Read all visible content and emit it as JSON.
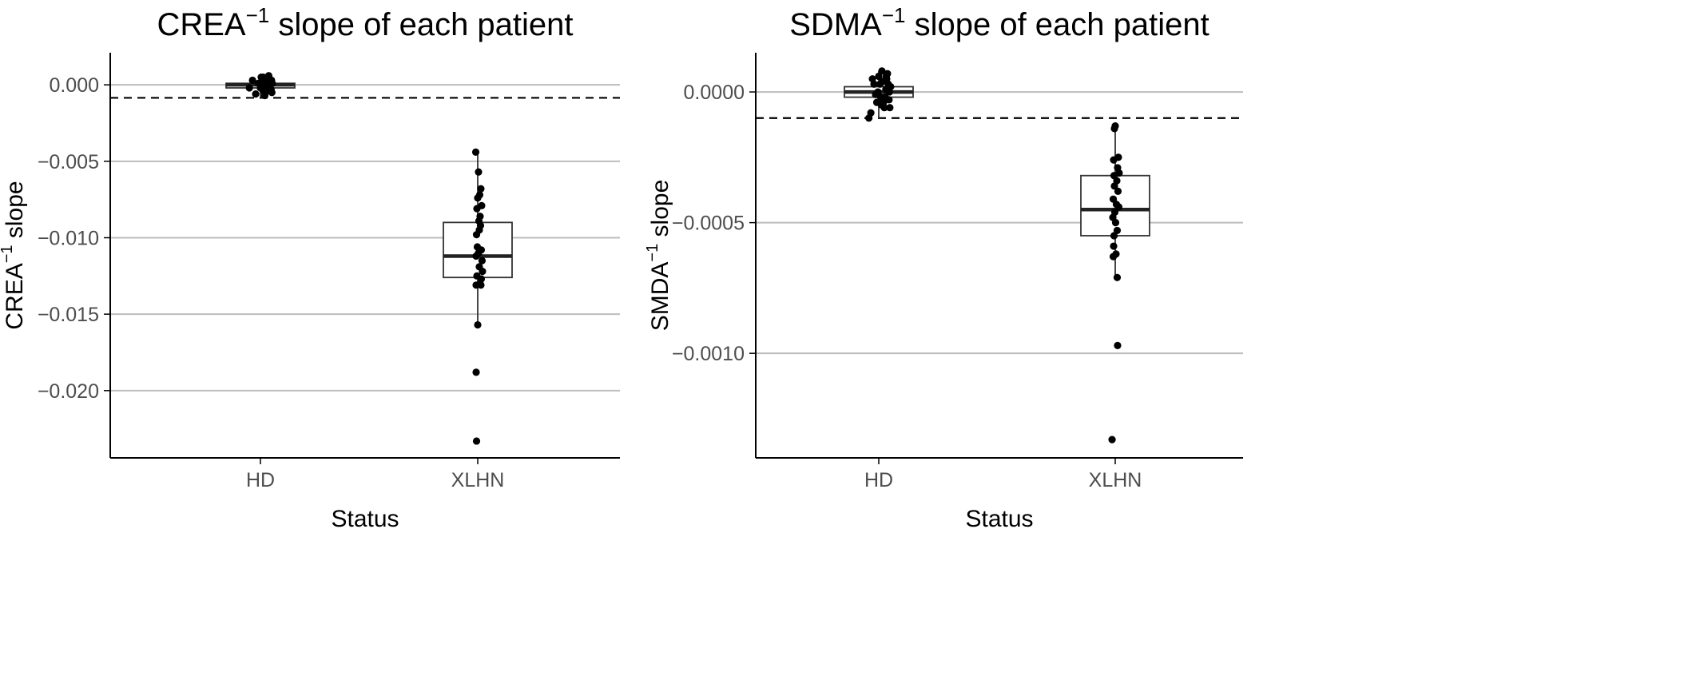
{
  "chart_data": [
    {
      "type": "box",
      "title": "CREA",
      "title_sup": "−1",
      "title_suffix": " slope of each patient",
      "xlabel": "Status",
      "ylabel": "CREA",
      "ylabel_sup": "−1",
      "ylabel_suffix": " slope",
      "categories": [
        "HD",
        "XLHN"
      ],
      "ylim": [
        -0.0244,
        0.0021
      ],
      "yticks": [
        0,
        -0.005,
        -0.01,
        -0.015,
        -0.02
      ],
      "ytick_labels": [
        "0.000",
        "−0.005",
        "−0.010",
        "−0.015",
        "−0.020"
      ],
      "reference_line": -0.00085,
      "grid": "major horizontal",
      "boxes": [
        {
          "category": "HD",
          "q1": -0.0002,
          "median": 0.0,
          "q3": 0.0001,
          "whisker_low": -0.0008,
          "whisker_high": 0.0006
        },
        {
          "category": "XLHN",
          "q1": -0.0126,
          "median": -0.0112,
          "q3": -0.009,
          "whisker_low": -0.0157,
          "whisker_high": -0.0044
        }
      ],
      "points": [
        {
          "category": "HD",
          "x": -0.28,
          "y": -0.0002
        },
        {
          "category": "HD",
          "x": -0.2,
          "y": 0.0003
        },
        {
          "category": "HD",
          "x": -0.12,
          "y": -0.0006
        },
        {
          "category": "HD",
          "x": -0.05,
          "y": 0.0001
        },
        {
          "category": "HD",
          "x": 0.02,
          "y": 0.0005
        },
        {
          "category": "HD",
          "x": 0.08,
          "y": -0.0004
        },
        {
          "category": "HD",
          "x": 0.14,
          "y": 0.0002
        },
        {
          "category": "HD",
          "x": 0.18,
          "y": -0.0001
        },
        {
          "category": "HD",
          "x": 0.23,
          "y": 0.0004
        },
        {
          "category": "HD",
          "x": 0.27,
          "y": -0.0003
        },
        {
          "category": "HD",
          "x": 0.3,
          "y": 0.0001
        },
        {
          "category": "HD",
          "x": 0.21,
          "y": 0.0006
        },
        {
          "category": "HD",
          "x": 0.11,
          "y": -0.0007
        },
        {
          "category": "HD",
          "x": 0.0,
          "y": -0.0002
        },
        {
          "category": "HD",
          "x": 0.05,
          "y": 0.0003
        },
        {
          "category": "HD",
          "x": 0.25,
          "y": 0.0
        },
        {
          "category": "HD",
          "x": 0.16,
          "y": 0.0004
        },
        {
          "category": "HD",
          "x": 0.29,
          "y": -0.0005
        },
        {
          "category": "HD",
          "x": 0.1,
          "y": 0.0001
        },
        {
          "category": "HD",
          "x": 0.19,
          "y": -0.0004
        },
        {
          "category": "HD",
          "x": 0.07,
          "y": 0.0005
        },
        {
          "category": "HD",
          "x": 0.24,
          "y": 0.0002
        },
        {
          "category": "HD",
          "x": 0.28,
          "y": 0.0003
        },
        {
          "category": "HD",
          "x": 0.13,
          "y": -0.0002
        },
        {
          "category": "HD",
          "x": 0.17,
          "y": 0.0
        },
        {
          "category": "XLHN",
          "x": -0.05,
          "y": -0.0044
        },
        {
          "category": "XLHN",
          "x": 0.02,
          "y": -0.0057
        },
        {
          "category": "XLHN",
          "x": 0.08,
          "y": -0.0068
        },
        {
          "category": "XLHN",
          "x": 0.05,
          "y": -0.0072
        },
        {
          "category": "XLHN",
          "x": 0.0,
          "y": -0.0074
        },
        {
          "category": "XLHN",
          "x": 0.1,
          "y": -0.0079
        },
        {
          "category": "XLHN",
          "x": -0.02,
          "y": -0.0081
        },
        {
          "category": "XLHN",
          "x": 0.06,
          "y": -0.0086
        },
        {
          "category": "XLHN",
          "x": 0.03,
          "y": -0.0089
        },
        {
          "category": "XLHN",
          "x": 0.07,
          "y": -0.0092
        },
        {
          "category": "XLHN",
          "x": 0.04,
          "y": -0.0095
        },
        {
          "category": "XLHN",
          "x": -0.03,
          "y": -0.0098
        },
        {
          "category": "XLHN",
          "x": -0.01,
          "y": -0.0106
        },
        {
          "category": "XLHN",
          "x": 0.09,
          "y": -0.0108
        },
        {
          "category": "XLHN",
          "x": 0.02,
          "y": -0.011
        },
        {
          "category": "XLHN",
          "x": -0.04,
          "y": -0.0112
        },
        {
          "category": "XLHN",
          "x": 0.11,
          "y": -0.0115
        },
        {
          "category": "XLHN",
          "x": 0.04,
          "y": -0.0119
        },
        {
          "category": "XLHN",
          "x": 0.12,
          "y": -0.0122
        },
        {
          "category": "XLHN",
          "x": -0.02,
          "y": -0.0125
        },
        {
          "category": "XLHN",
          "x": 0.09,
          "y": -0.0127
        },
        {
          "category": "XLHN",
          "x": 0.06,
          "y": -0.013
        },
        {
          "category": "XLHN",
          "x": -0.04,
          "y": -0.0131
        },
        {
          "category": "XLHN",
          "x": 0.08,
          "y": -0.0131
        },
        {
          "category": "XLHN",
          "x": 0.0,
          "y": -0.0157
        },
        {
          "category": "XLHN",
          "x": -0.04,
          "y": -0.0188
        },
        {
          "category": "XLHN",
          "x": -0.03,
          "y": -0.0233
        }
      ]
    },
    {
      "type": "box",
      "title": "SDMA",
      "title_sup": "−1",
      "title_suffix": " slope of each patient",
      "xlabel": "Status",
      "ylabel": "SMDA",
      "ylabel_sup": "−1",
      "ylabel_suffix": " slope",
      "categories": [
        "HD",
        "XLHN"
      ],
      "ylim": [
        -0.0014,
        0.00015
      ],
      "yticks": [
        0,
        -0.0005,
        -0.001
      ],
      "ytick_labels": [
        "0.0000",
        "−0.0005",
        "−0.0010"
      ],
      "reference_line": -0.0001,
      "grid": "major horizontal",
      "boxes": [
        {
          "category": "HD",
          "q1": -2e-05,
          "median": 0.0,
          "q3": 2e-05,
          "whisker_low": -0.0001,
          "whisker_high": 8e-05
        },
        {
          "category": "XLHN",
          "q1": -0.00055,
          "median": -0.00045,
          "q3": -0.00032,
          "whisker_low": -0.00071,
          "whisker_high": -0.00013
        }
      ],
      "points": [
        {
          "category": "HD",
          "x": -0.2,
          "y": -8e-05
        },
        {
          "category": "HD",
          "x": -0.12,
          "y": 3e-05
        },
        {
          "category": "HD",
          "x": -0.05,
          "y": -4e-05
        },
        {
          "category": "HD",
          "x": 0.0,
          "y": 6e-05
        },
        {
          "category": "HD",
          "x": 0.05,
          "y": -2e-05
        },
        {
          "category": "HD",
          "x": 0.1,
          "y": 4e-05
        },
        {
          "category": "HD",
          "x": 0.14,
          "y": -6e-05
        },
        {
          "category": "HD",
          "x": 0.18,
          "y": 1e-05
        },
        {
          "category": "HD",
          "x": 0.22,
          "y": 7e-05
        },
        {
          "category": "HD",
          "x": 0.26,
          "y": -3e-05
        },
        {
          "category": "HD",
          "x": 0.3,
          "y": 2e-05
        },
        {
          "category": "HD",
          "x": -0.25,
          "y": -0.0001
        },
        {
          "category": "HD",
          "x": -0.16,
          "y": 5e-05
        },
        {
          "category": "HD",
          "x": -0.08,
          "y": -1e-05
        },
        {
          "category": "HD",
          "x": 0.03,
          "y": 3e-05
        },
        {
          "category": "HD",
          "x": 0.12,
          "y": -4e-05
        },
        {
          "category": "HD",
          "x": 0.2,
          "y": 5e-05
        },
        {
          "category": "HD",
          "x": 0.28,
          "y": -6e-05
        },
        {
          "category": "HD",
          "x": 0.08,
          "y": 8e-05
        },
        {
          "category": "HD",
          "x": 0.16,
          "y": -2e-05
        },
        {
          "category": "HD",
          "x": 0.24,
          "y": 3e-05
        },
        {
          "category": "HD",
          "x": -0.02,
          "y": 0.0
        },
        {
          "category": "HD",
          "x": 0.07,
          "y": -5e-05
        },
        {
          "category": "HD",
          "x": 0.19,
          "y": 6e-05
        },
        {
          "category": "HD",
          "x": 0.27,
          "y": 0.0
        },
        {
          "category": "XLHN",
          "x": 0.0,
          "y": -0.00013
        },
        {
          "category": "XLHN",
          "x": -0.02,
          "y": -0.00014
        },
        {
          "category": "XLHN",
          "x": 0.08,
          "y": -0.00025
        },
        {
          "category": "XLHN",
          "x": -0.04,
          "y": -0.00026
        },
        {
          "category": "XLHN",
          "x": 0.06,
          "y": -0.00029
        },
        {
          "category": "XLHN",
          "x": 0.1,
          "y": -0.00031
        },
        {
          "category": "XLHN",
          "x": -0.03,
          "y": -0.00032
        },
        {
          "category": "XLHN",
          "x": 0.04,
          "y": -0.00034
        },
        {
          "category": "XLHN",
          "x": -0.02,
          "y": -0.00036
        },
        {
          "category": "XLHN",
          "x": 0.07,
          "y": -0.00038
        },
        {
          "category": "XLHN",
          "x": -0.05,
          "y": -0.00041
        },
        {
          "category": "XLHN",
          "x": 0.03,
          "y": -0.00043
        },
        {
          "category": "XLHN",
          "x": 0.09,
          "y": -0.00044
        },
        {
          "category": "XLHN",
          "x": -0.01,
          "y": -0.00046
        },
        {
          "category": "XLHN",
          "x": -0.06,
          "y": -0.00048
        },
        {
          "category": "XLHN",
          "x": 0.01,
          "y": -0.0005
        },
        {
          "category": "XLHN",
          "x": 0.05,
          "y": -0.00053
        },
        {
          "category": "XLHN",
          "x": -0.03,
          "y": -0.00055
        },
        {
          "category": "XLHN",
          "x": -0.04,
          "y": -0.00059
        },
        {
          "category": "XLHN",
          "x": 0.02,
          "y": -0.00062
        },
        {
          "category": "XLHN",
          "x": -0.05,
          "y": -0.00063
        },
        {
          "category": "XLHN",
          "x": 0.05,
          "y": -0.00071
        },
        {
          "category": "XLHN",
          "x": 0.06,
          "y": -0.00097
        },
        {
          "category": "XLHN",
          "x": -0.08,
          "y": -0.00133
        }
      ]
    }
  ]
}
